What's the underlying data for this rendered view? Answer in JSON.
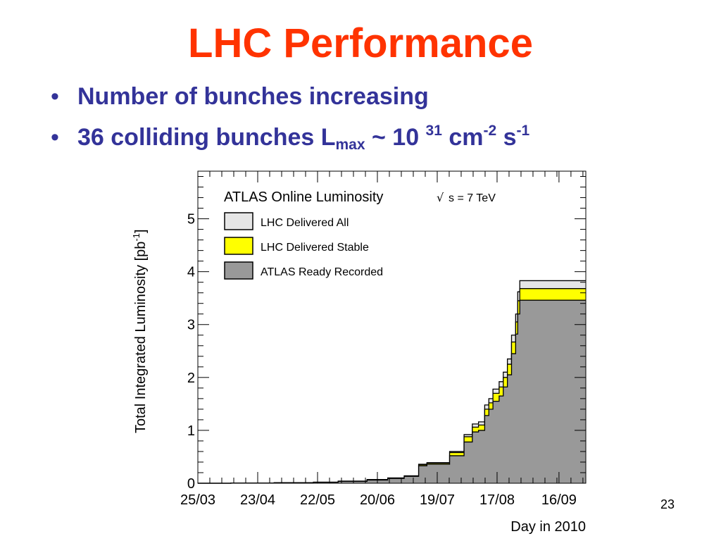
{
  "slide": {
    "title": "LHC Performance",
    "bullets": [
      {
        "text": "Number of bunches increasing"
      },
      {
        "text_main": "36 colliding bunches L",
        "sub": "max",
        "text_mid1": " ~ 10 ",
        "sup1": "31",
        "text_mid2": " cm",
        "sup2": "-2",
        "text_mid3": " s",
        "sup3": "-1"
      }
    ],
    "bullet_symbol": "•",
    "page_number": "23"
  },
  "colors": {
    "title": "#ff3300",
    "bullets": "#333399",
    "delivered_all": "#e6e6e6",
    "delivered_stable": "#ffff00",
    "ready_recorded": "#999999"
  },
  "chart_data": {
    "type": "area",
    "title": "ATLAS Online Luminosity",
    "subtitle_sqrt": "√",
    "subtitle_rest": "s = 7 TeV",
    "xlabel": "Day in 2010",
    "ylabel_main": "Total Integrated Luminosity [pb",
    "ylabel_sup": "-1",
    "ylabel_end": "]",
    "x_ticks": [
      "25/03",
      "23/04",
      "22/05",
      "20/06",
      "19/07",
      "17/08",
      "16/09"
    ],
    "y_ticks": [
      0,
      1,
      2,
      3,
      4,
      5
    ],
    "xlim": [
      "25/03",
      "29/09"
    ],
    "ylim": [
      0,
      5.9
    ],
    "legend_position": "top-left",
    "series": [
      {
        "name": "LHC Delivered All",
        "color": "#e6e6e6",
        "points": [
          [
            "25/03",
            0
          ],
          [
            "10/04",
            0.005
          ],
          [
            "01/05",
            0.01
          ],
          [
            "20/05",
            0.02
          ],
          [
            "01/06",
            0.04
          ],
          [
            "15/06",
            0.07
          ],
          [
            "25/06",
            0.1
          ],
          [
            "03/07",
            0.14
          ],
          [
            "10/07",
            0.36
          ],
          [
            "14/07",
            0.39
          ],
          [
            "20/07",
            0.39
          ],
          [
            "25/07",
            0.6
          ],
          [
            "01/08",
            0.92
          ],
          [
            "05/08",
            1.12
          ],
          [
            "08/08",
            1.16
          ],
          [
            "11/08",
            1.48
          ],
          [
            "13/08",
            1.6
          ],
          [
            "15/08",
            1.78
          ],
          [
            "18/08",
            1.92
          ],
          [
            "20/08",
            2.1
          ],
          [
            "22/08",
            2.35
          ],
          [
            "24/08",
            2.8
          ],
          [
            "26/08",
            3.2
          ],
          [
            "27/08",
            3.62
          ],
          [
            "28/08",
            3.83
          ],
          [
            "29/09",
            3.83
          ]
        ]
      },
      {
        "name": "LHC Delivered Stable",
        "color": "#ffff00",
        "points": [
          [
            "25/03",
            0
          ],
          [
            "10/04",
            0.005
          ],
          [
            "01/05",
            0.01
          ],
          [
            "20/05",
            0.02
          ],
          [
            "01/06",
            0.04
          ],
          [
            "15/06",
            0.07
          ],
          [
            "25/06",
            0.1
          ],
          [
            "03/07",
            0.14
          ],
          [
            "10/07",
            0.35
          ],
          [
            "14/07",
            0.38
          ],
          [
            "20/07",
            0.38
          ],
          [
            "25/07",
            0.58
          ],
          [
            "01/08",
            0.88
          ],
          [
            "05/08",
            1.06
          ],
          [
            "08/08",
            1.1
          ],
          [
            "11/08",
            1.4
          ],
          [
            "13/08",
            1.52
          ],
          [
            "15/08",
            1.7
          ],
          [
            "18/08",
            1.82
          ],
          [
            "20/08",
            2.0
          ],
          [
            "22/08",
            2.25
          ],
          [
            "24/08",
            2.67
          ],
          [
            "26/08",
            3.05
          ],
          [
            "27/08",
            3.45
          ],
          [
            "28/08",
            3.68
          ],
          [
            "29/09",
            3.68
          ]
        ]
      },
      {
        "name": "ATLAS Ready Recorded",
        "color": "#999999",
        "points": [
          [
            "25/03",
            0
          ],
          [
            "10/04",
            0.004
          ],
          [
            "01/05",
            0.009
          ],
          [
            "20/05",
            0.018
          ],
          [
            "01/06",
            0.035
          ],
          [
            "15/06",
            0.06
          ],
          [
            "25/06",
            0.09
          ],
          [
            "03/07",
            0.13
          ],
          [
            "10/07",
            0.33
          ],
          [
            "14/07",
            0.36
          ],
          [
            "20/07",
            0.36
          ],
          [
            "25/07",
            0.52
          ],
          [
            "01/08",
            0.78
          ],
          [
            "05/08",
            0.97
          ],
          [
            "08/08",
            1.0
          ],
          [
            "11/08",
            1.28
          ],
          [
            "13/08",
            1.4
          ],
          [
            "15/08",
            1.55
          ],
          [
            "18/08",
            1.65
          ],
          [
            "20/08",
            1.82
          ],
          [
            "22/08",
            2.05
          ],
          [
            "24/08",
            2.45
          ],
          [
            "26/08",
            2.82
          ],
          [
            "27/08",
            3.2
          ],
          [
            "28/08",
            3.46
          ],
          [
            "29/09",
            3.46
          ]
        ]
      }
    ]
  }
}
